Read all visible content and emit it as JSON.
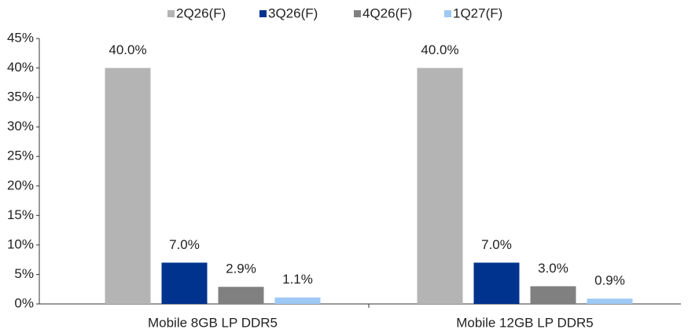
{
  "chart_data": {
    "type": "bar",
    "categories": [
      "Mobile 8GB LP DDR5",
      "Mobile 12GB LP DDR5"
    ],
    "series": [
      {
        "name": "2Q26(F)",
        "color": "#b4b4b4",
        "values": [
          40.0,
          40.0
        ],
        "value_labels": [
          "40.0%",
          "40.0%"
        ]
      },
      {
        "name": "3Q26(F)",
        "color": "#00338e",
        "values": [
          7.0,
          7.0
        ],
        "value_labels": [
          "7.0%",
          "7.0%"
        ]
      },
      {
        "name": "4Q26(F)",
        "color": "#808080",
        "values": [
          2.9,
          3.0
        ],
        "value_labels": [
          "2.9%",
          "3.0%"
        ]
      },
      {
        "name": "1Q27(F)",
        "color": "#9fc9f5",
        "values": [
          1.1,
          0.9
        ],
        "value_labels": [
          "1.1%",
          "0.9%"
        ]
      }
    ],
    "ylim": [
      0,
      45
    ],
    "yticks": [
      {
        "value": 0,
        "label": "0%"
      },
      {
        "value": 5,
        "label": "5%"
      },
      {
        "value": 10,
        "label": "10%"
      },
      {
        "value": 15,
        "label": "15%"
      },
      {
        "value": 20,
        "label": "20%"
      },
      {
        "value": 25,
        "label": "25%"
      },
      {
        "value": 30,
        "label": "30%"
      },
      {
        "value": 35,
        "label": "35%"
      },
      {
        "value": 40,
        "label": "40%"
      },
      {
        "value": 45,
        "label": "45%"
      }
    ],
    "legend": "top"
  }
}
